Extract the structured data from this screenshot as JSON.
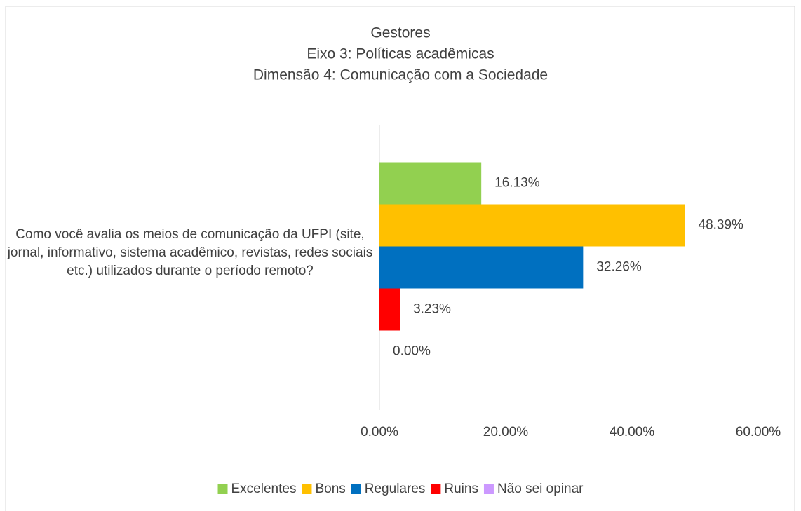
{
  "chart_data": {
    "type": "bar",
    "orientation": "horizontal",
    "title": [
      "Gestores",
      "Eixo 3: Políticas acadêmicas",
      "Dimensão 4: Comunicação com a Sociedade"
    ],
    "categories": [
      "Como você avalia os meios de comunicação da UFPI (site, jornal, informativo, sistema acadêmico, revistas, redes sociais etc.) utilizados durante o período remoto?"
    ],
    "series": [
      {
        "name": "Excelentes",
        "color": "#92d050",
        "values": [
          16.13
        ],
        "value_labels": [
          "16.13%"
        ]
      },
      {
        "name": "Bons",
        "color": "#ffc000",
        "values": [
          48.39
        ],
        "value_labels": [
          "48.39%"
        ]
      },
      {
        "name": "Regulares",
        "color": "#0070c0",
        "values": [
          32.26
        ],
        "value_labels": [
          "32.26%"
        ]
      },
      {
        "name": "Ruins",
        "color": "#ff0000",
        "values": [
          3.23
        ],
        "value_labels": [
          "3.23%"
        ]
      },
      {
        "name": "Não sei opinar",
        "color": "#cc99ff",
        "values": [
          0
        ],
        "value_labels": [
          "0.00%"
        ]
      }
    ],
    "xlim": [
      0,
      60
    ],
    "xticks": [
      {
        "value": 0,
        "label": "0.00%"
      },
      {
        "value": 20,
        "label": "20.00%"
      },
      {
        "value": 40,
        "label": "40.00%"
      },
      {
        "value": 60,
        "label": "60.00%"
      }
    ],
    "grid": false,
    "legend": "bottom"
  }
}
